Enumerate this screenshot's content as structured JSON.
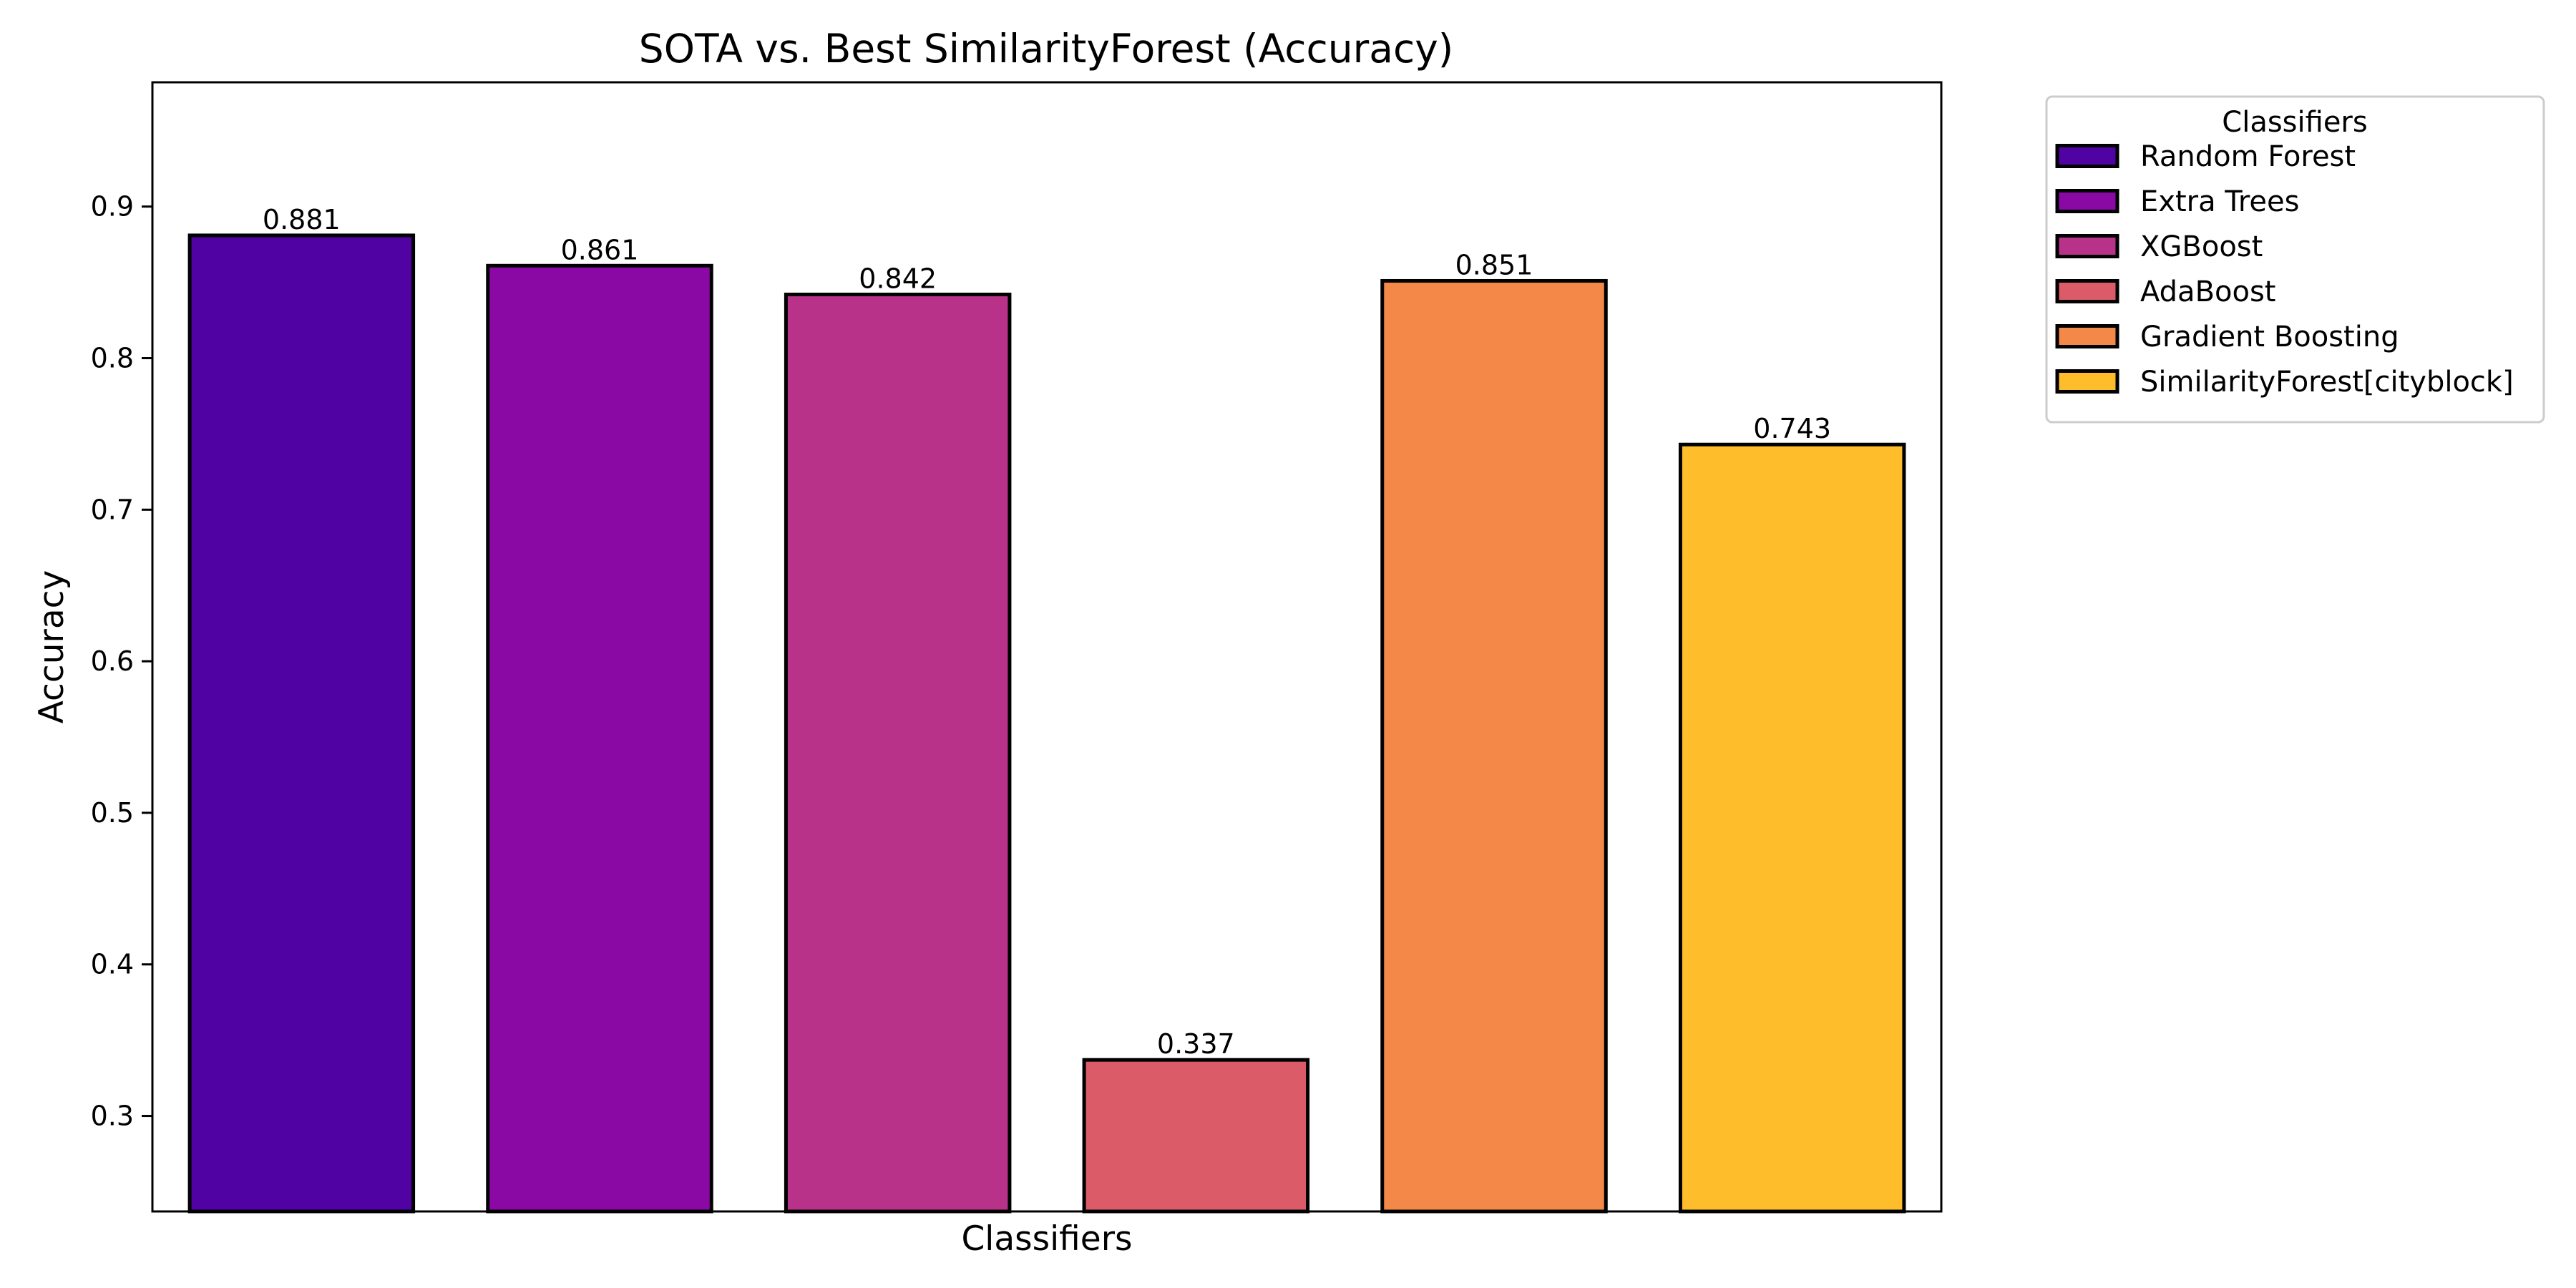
{
  "chart_data": {
    "type": "bar",
    "title": "SOTA vs. Best SimilarityForest (Accuracy)",
    "xlabel": "Classifiers",
    "ylabel": "Accuracy",
    "ylim": [
      0.237,
      0.982
    ],
    "yticks": [
      0.3,
      0.4,
      0.5,
      0.6,
      0.7,
      0.8,
      0.9
    ],
    "ytick_labels": [
      "0.3",
      "0.4",
      "0.5",
      "0.6",
      "0.7",
      "0.8",
      "0.9"
    ],
    "categories": [
      "Random Forest",
      "Extra Trees",
      "XGBoost",
      "AdaBoost",
      "Gradient Boosting",
      "SimilarityForest[cityblock]"
    ],
    "values": [
      0.881,
      0.861,
      0.842,
      0.337,
      0.851,
      0.743
    ],
    "value_labels": [
      "0.881",
      "0.861",
      "0.842",
      "0.337",
      "0.851",
      "0.743"
    ],
    "colors": [
      "#5002a2",
      "#8a09a5",
      "#b83289",
      "#db5c68",
      "#f48849",
      "#febd2a"
    ],
    "edge_color": "#000000",
    "grid": false,
    "x_ticks_shown": false,
    "legend": {
      "title": "Classifiers",
      "position": "outside-upper-right"
    }
  }
}
